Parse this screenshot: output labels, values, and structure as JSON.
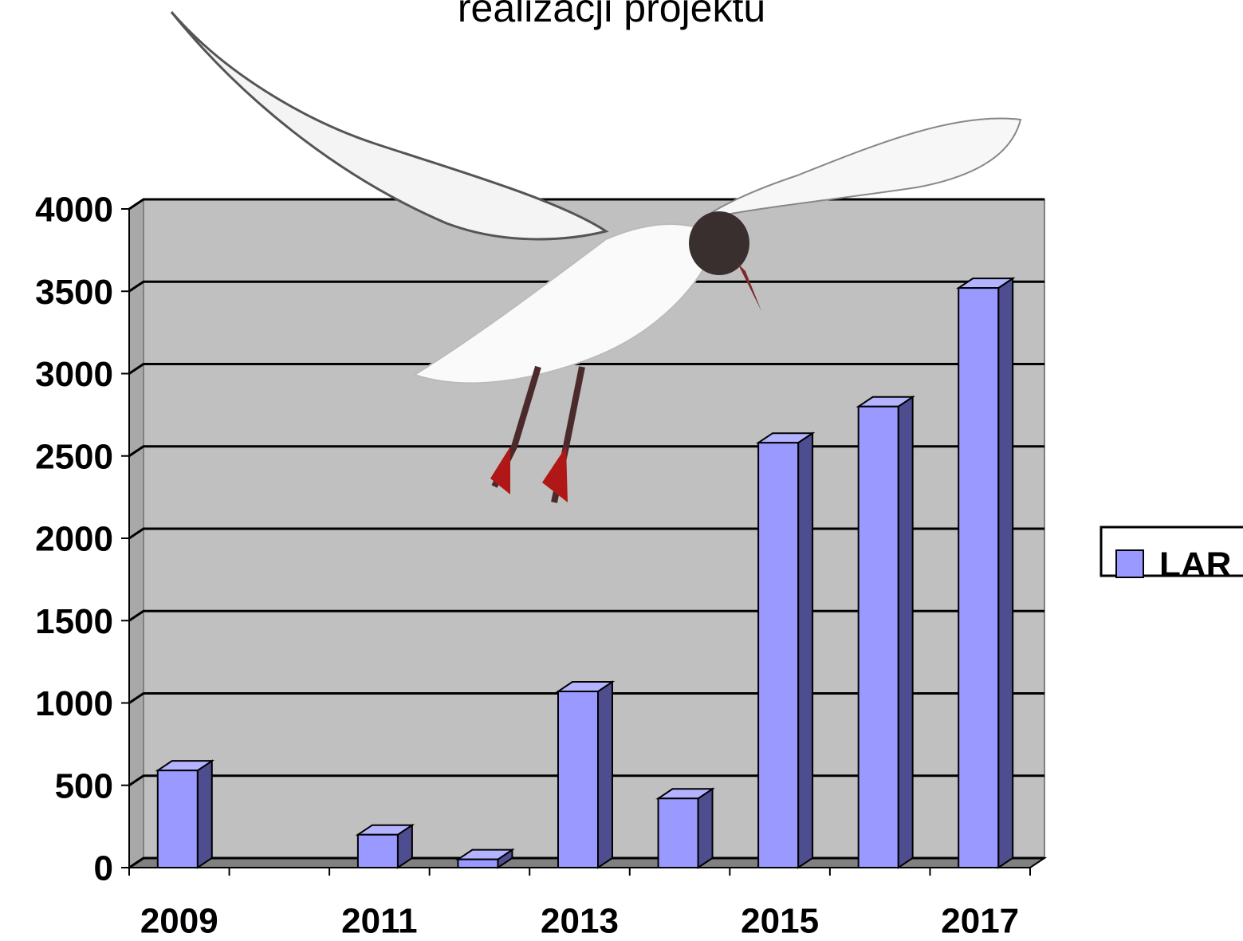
{
  "chart_data": {
    "type": "bar",
    "title": "realizacji projektu",
    "categories": [
      "2009",
      null,
      "2011",
      null,
      "2013",
      null,
      "2015",
      null,
      "2017"
    ],
    "series": [
      {
        "name": "LAR",
        "color": "#9999ff",
        "values": [
          590,
          null,
          200,
          50,
          1070,
          420,
          2580,
          2800,
          3520
        ]
      }
    ],
    "ylim": [
      0,
      4000
    ],
    "yticks": [
      0,
      500,
      1000,
      1500,
      2000,
      2500,
      3000,
      3500,
      4000
    ],
    "grid": true,
    "legend": "right"
  }
}
